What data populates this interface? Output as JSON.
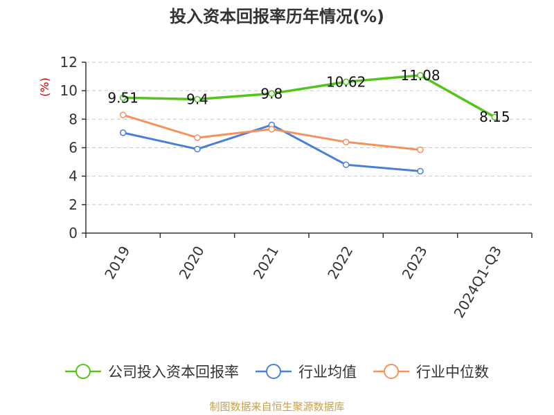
{
  "chart_data": {
    "type": "line",
    "title": "投入资本回报率历年情况(%)",
    "ylabel": "(%)",
    "categories": [
      "2019",
      "2020",
      "2021",
      "2022",
      "2023",
      "2024Q1-Q3"
    ],
    "ylim": [
      0,
      12
    ],
    "yticks": [
      0,
      2,
      4,
      6,
      8,
      10,
      12
    ],
    "grid": true,
    "legend_position": "bottom",
    "series": [
      {
        "name": "公司投入资本回报率",
        "color": "#52c41a",
        "values": [
          9.51,
          9.4,
          9.8,
          10.62,
          11.08,
          8.15
        ],
        "labels": [
          "9.51",
          "9.4",
          "9.8",
          "10.62",
          "11.08",
          "8.15"
        ],
        "show_labels": true
      },
      {
        "name": "行业均值",
        "color": "#4a7fd6",
        "values": [
          7.05,
          5.9,
          7.6,
          4.8,
          4.35,
          null
        ],
        "show_labels": false
      },
      {
        "name": "行业中位数",
        "color": "#f5915c",
        "values": [
          8.3,
          6.7,
          7.3,
          6.4,
          5.85,
          null
        ],
        "show_labels": false
      }
    ]
  },
  "source": "制图数据来自恒生聚源数据库"
}
